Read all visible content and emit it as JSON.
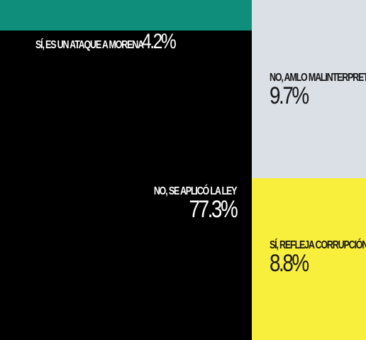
{
  "chart_data": {
    "type": "treemap",
    "title": "",
    "items": [
      {
        "id": "ataque_morena",
        "label": "SÍ, ES UN ATAQUE A MORENA",
        "value": 4.2,
        "value_text": "4.2%",
        "color": "#0f8f7b",
        "text_color": "#ffffff"
      },
      {
        "id": "se_aplico_ley",
        "label": "NO, SE APLICÓ LA LEY",
        "value": 77.3,
        "value_text": "77.3%",
        "color": "#000000",
        "text_color": "#ffffff"
      },
      {
        "id": "amlo_malinterpreta",
        "label": "NO, AMLO MALINTERPRETA",
        "value": 9.7,
        "value_text": "9.7%",
        "color": "#dbe0e6",
        "text_color": "#141414"
      },
      {
        "id": "refleja_corrupcion",
        "label": "SÍ, REFLEJA CORRUPCIÓN",
        "value": 8.8,
        "value_text": "8.8%",
        "color": "#f8ef3d",
        "text_color": "#141414"
      }
    ]
  }
}
